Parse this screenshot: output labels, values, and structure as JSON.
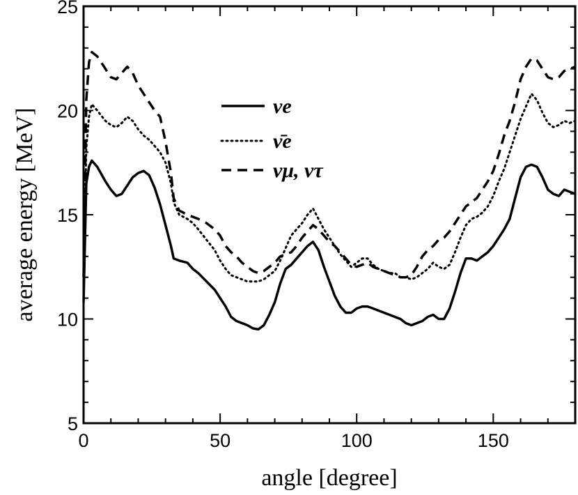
{
  "chart_data": {
    "type": "line",
    "title": "",
    "xlabel": "angle [degree]",
    "ylabel": "average energy [MeV]",
    "xlim": [
      0,
      180
    ],
    "ylim": [
      5,
      25
    ],
    "xticks": [
      0,
      50,
      100,
      150
    ],
    "yticks": [
      5,
      10,
      15,
      20,
      25
    ],
    "grid": false,
    "legend_position": "top-center",
    "series": [
      {
        "name": "νe",
        "style": "solid",
        "color": "#000000",
        "x": [
          0,
          1,
          2,
          3,
          5,
          8,
          10,
          12,
          14,
          16,
          18,
          20,
          22,
          24,
          26,
          28,
          30,
          32,
          33,
          35,
          38,
          40,
          42,
          45,
          48,
          50,
          52,
          54,
          56,
          58,
          60,
          62,
          64,
          66,
          68,
          70,
          72,
          74,
          76,
          78,
          80,
          82,
          84,
          86,
          88,
          90,
          92,
          94,
          96,
          98,
          100,
          102,
          104,
          106,
          108,
          110,
          112,
          114,
          116,
          118,
          120,
          122,
          124,
          126,
          128,
          130,
          132,
          134,
          136,
          138,
          140,
          142,
          144,
          146,
          148,
          150,
          152,
          154,
          156,
          158,
          160,
          162,
          164,
          166,
          168,
          170,
          172,
          174,
          176,
          178,
          180
        ],
        "y": [
          10.8,
          16.5,
          17.3,
          17.6,
          17.3,
          16.6,
          16.2,
          15.9,
          16.0,
          16.4,
          16.8,
          17.0,
          17.1,
          16.9,
          16.3,
          15.5,
          14.5,
          13.5,
          12.9,
          12.8,
          12.7,
          12.4,
          12.2,
          11.8,
          11.4,
          11.0,
          10.6,
          10.1,
          9.9,
          9.8,
          9.7,
          9.55,
          9.5,
          9.7,
          10.2,
          10.8,
          11.7,
          12.4,
          12.6,
          12.9,
          13.2,
          13.5,
          13.7,
          13.3,
          12.5,
          11.8,
          11.1,
          10.6,
          10.3,
          10.3,
          10.5,
          10.6,
          10.6,
          10.5,
          10.4,
          10.3,
          10.2,
          10.1,
          10.0,
          9.8,
          9.7,
          9.8,
          9.9,
          10.1,
          10.2,
          10.0,
          10.0,
          10.5,
          11.3,
          12.2,
          12.9,
          12.9,
          12.8,
          13.0,
          13.2,
          13.5,
          13.9,
          14.3,
          14.8,
          15.8,
          16.8,
          17.3,
          17.4,
          17.3,
          16.8,
          16.2,
          16.0,
          15.9,
          16.2,
          16.1,
          16.0
        ]
      },
      {
        "name": "ν̄e",
        "style": "dotted",
        "color": "#000000",
        "x": [
          0,
          1,
          2,
          3,
          5,
          8,
          10,
          12,
          14,
          16,
          18,
          20,
          22,
          24,
          26,
          28,
          30,
          32,
          33,
          35,
          38,
          40,
          42,
          45,
          48,
          50,
          52,
          54,
          56,
          58,
          60,
          62,
          64,
          66,
          68,
          70,
          72,
          74,
          76,
          78,
          80,
          82,
          84,
          86,
          88,
          90,
          92,
          94,
          96,
          98,
          100,
          102,
          104,
          106,
          108,
          110,
          112,
          114,
          116,
          118,
          120,
          122,
          124,
          126,
          128,
          130,
          132,
          134,
          136,
          138,
          140,
          142,
          144,
          146,
          148,
          150,
          152,
          154,
          156,
          158,
          160,
          162,
          164,
          166,
          168,
          170,
          172,
          174,
          176,
          178,
          180
        ],
        "y": [
          11.5,
          18.2,
          19.7,
          20.3,
          20.0,
          19.5,
          19.3,
          19.2,
          19.4,
          19.7,
          19.5,
          19.1,
          18.8,
          18.6,
          18.3,
          18.0,
          17.5,
          16.5,
          15.6,
          15.0,
          14.8,
          14.6,
          14.3,
          13.8,
          13.3,
          12.8,
          12.4,
          12.1,
          12.0,
          11.9,
          11.8,
          11.8,
          11.8,
          11.9,
          12.1,
          12.3,
          12.8,
          13.4,
          14.0,
          14.3,
          14.6,
          15.0,
          15.3,
          14.8,
          14.3,
          13.9,
          13.5,
          13.1,
          12.8,
          12.5,
          12.7,
          12.9,
          12.9,
          12.6,
          12.4,
          12.3,
          12.2,
          12.2,
          12.0,
          12.0,
          11.9,
          12.0,
          12.2,
          12.4,
          12.7,
          12.5,
          12.4,
          12.6,
          13.2,
          13.9,
          14.5,
          14.8,
          14.9,
          15.1,
          15.4,
          15.9,
          16.6,
          17.2,
          18.0,
          18.8,
          19.6,
          20.2,
          20.8,
          20.5,
          19.9,
          19.4,
          19.2,
          19.3,
          19.5,
          19.4,
          19.5
        ]
      },
      {
        "name": "νμ, ντ",
        "style": "dashed",
        "color": "#000000",
        "x": [
          0,
          1,
          2,
          3,
          5,
          8,
          10,
          12,
          14,
          16,
          18,
          20,
          22,
          24,
          26,
          28,
          30,
          32,
          33,
          35,
          38,
          40,
          42,
          45,
          48,
          50,
          52,
          54,
          56,
          58,
          60,
          62,
          64,
          66,
          68,
          70,
          72,
          74,
          76,
          78,
          80,
          82,
          84,
          86,
          88,
          90,
          92,
          94,
          96,
          98,
          100,
          102,
          104,
          106,
          108,
          110,
          112,
          114,
          116,
          118,
          120,
          122,
          124,
          126,
          128,
          130,
          132,
          134,
          136,
          138,
          140,
          142,
          144,
          146,
          148,
          150,
          152,
          154,
          156,
          158,
          160,
          162,
          164,
          166,
          168,
          170,
          172,
          174,
          176,
          178,
          180
        ],
        "y": [
          12.0,
          20.5,
          22.3,
          22.8,
          22.6,
          22.0,
          21.6,
          21.5,
          21.8,
          22.1,
          21.8,
          21.2,
          20.8,
          20.4,
          20.0,
          19.7,
          18.5,
          17.0,
          15.8,
          15.2,
          15.0,
          14.9,
          14.8,
          14.6,
          14.3,
          14.0,
          13.5,
          13.2,
          13.0,
          12.7,
          12.5,
          12.3,
          12.2,
          12.3,
          12.5,
          12.7,
          13.0,
          13.1,
          13.2,
          13.5,
          13.9,
          14.2,
          14.5,
          14.3,
          14.0,
          13.7,
          13.5,
          13.2,
          12.9,
          12.6,
          12.5,
          12.6,
          12.7,
          12.5,
          12.4,
          12.3,
          12.2,
          12.1,
          12.0,
          12.0,
          12.1,
          12.5,
          13.0,
          13.3,
          13.5,
          13.8,
          13.9,
          14.2,
          14.6,
          15.0,
          15.4,
          15.6,
          15.8,
          16.2,
          16.6,
          17.1,
          17.9,
          18.8,
          19.5,
          20.4,
          21.5,
          22.1,
          22.5,
          22.4,
          22.0,
          21.6,
          21.5,
          21.6,
          21.9,
          22.0,
          22.1
        ]
      }
    ]
  }
}
